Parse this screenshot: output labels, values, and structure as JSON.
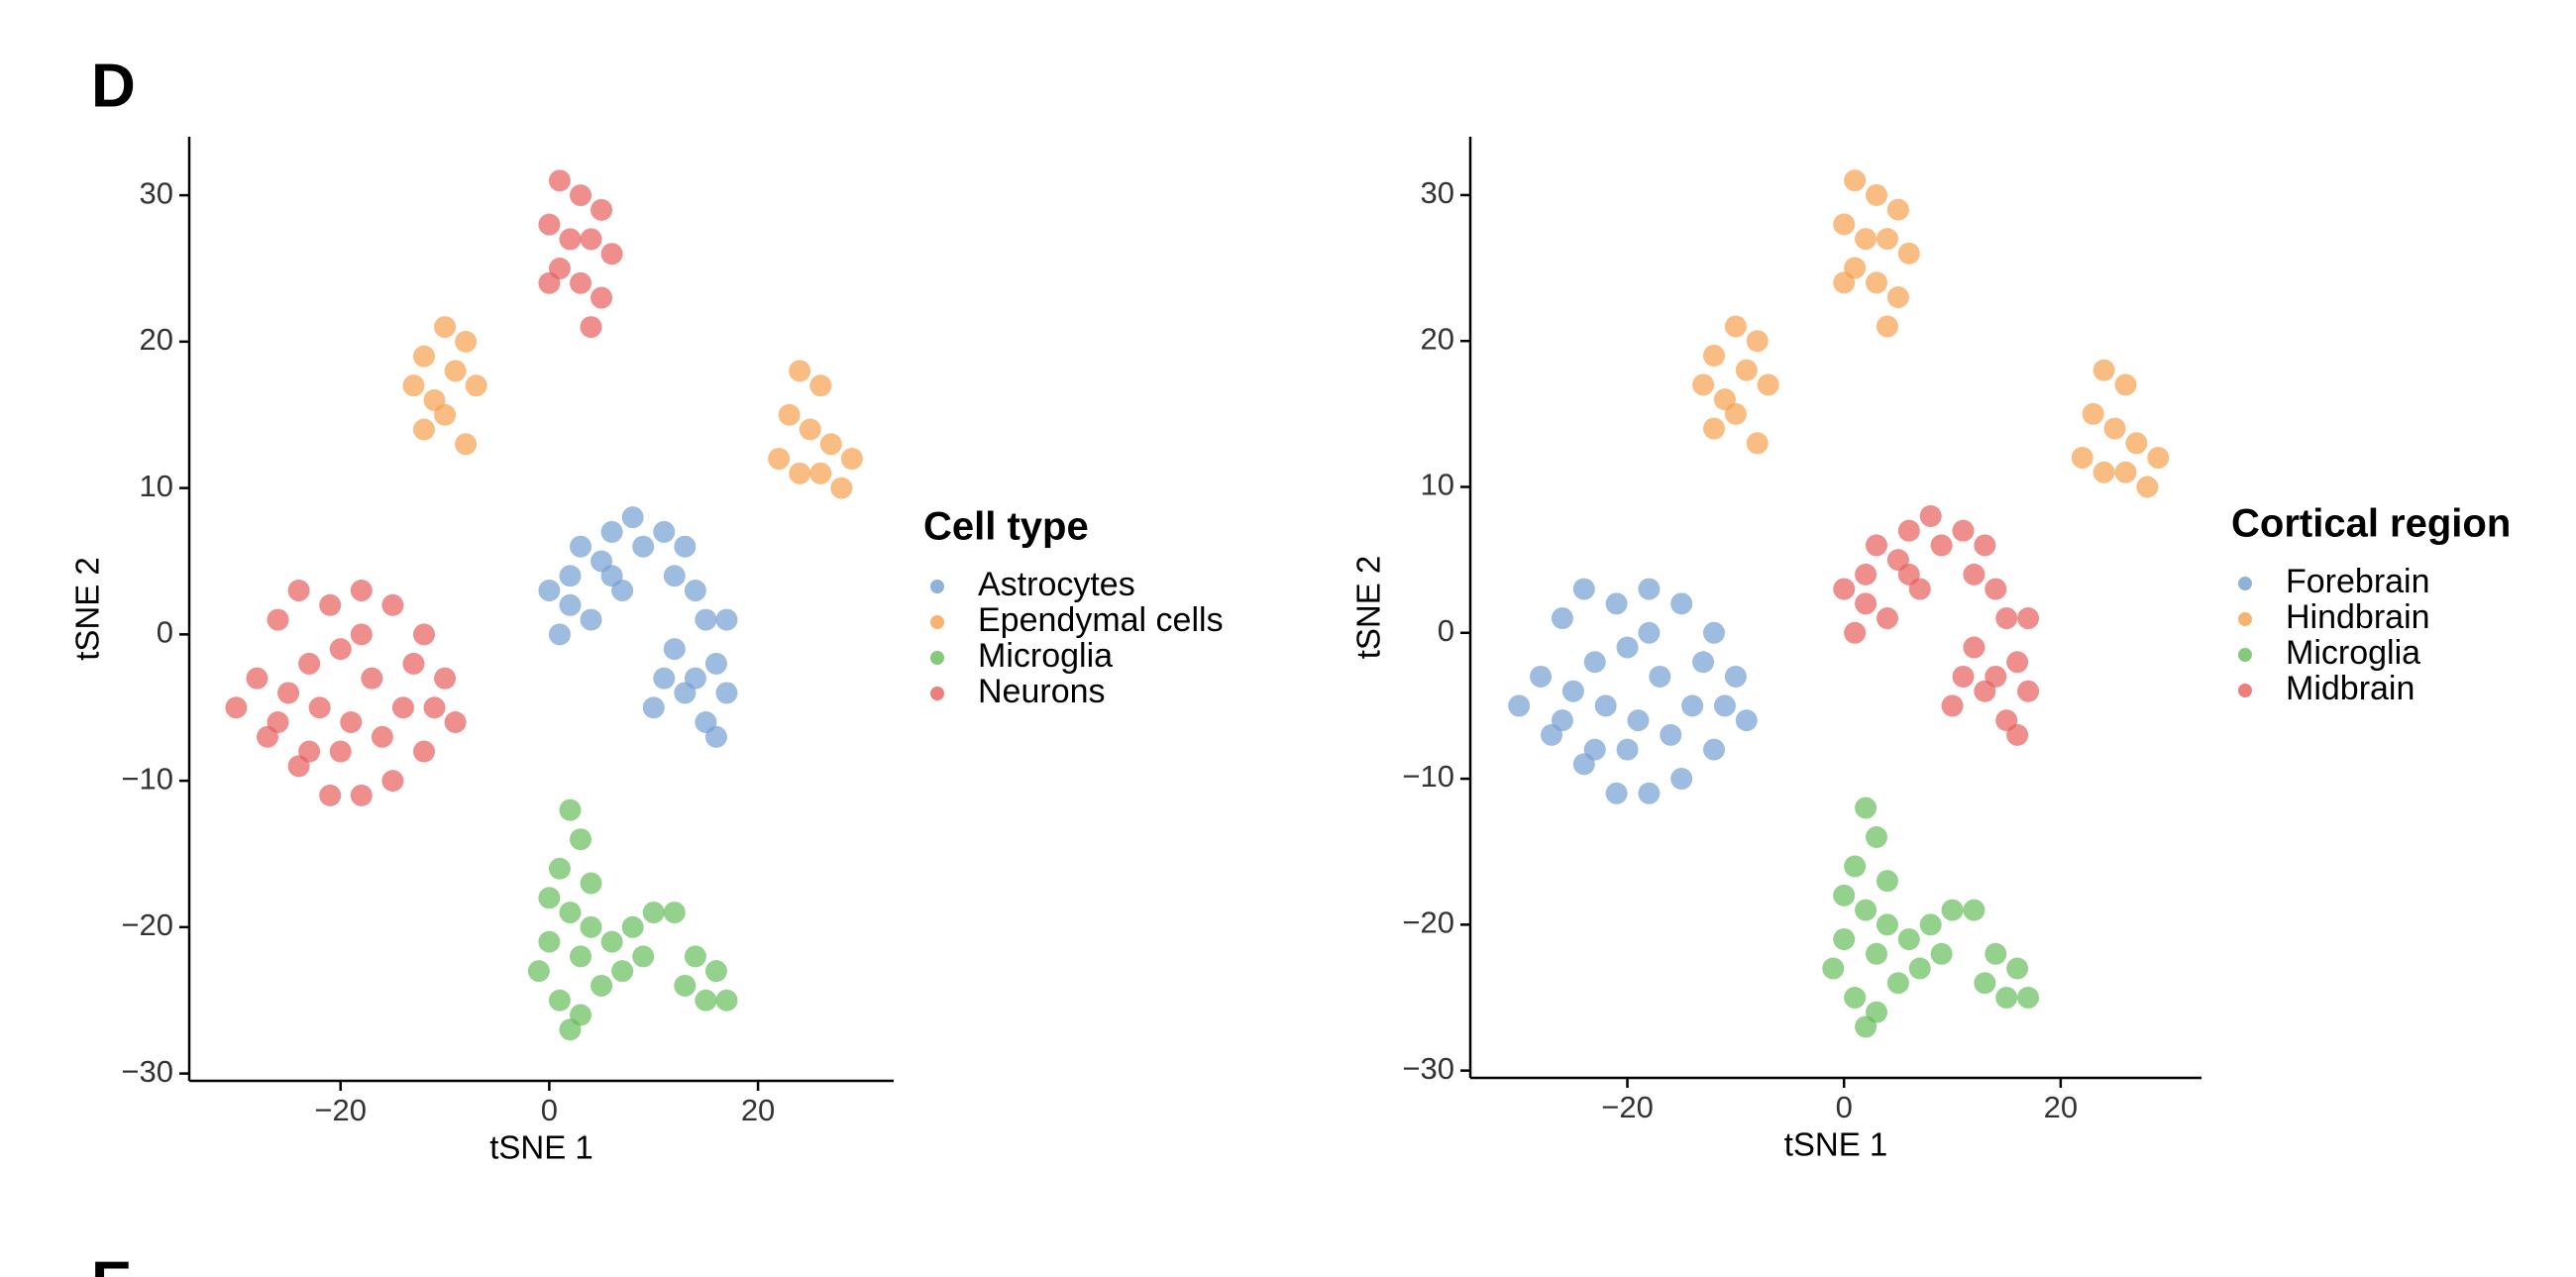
{
  "panels": [
    "D",
    "E"
  ],
  "chart_data": [
    {
      "type": "scatter",
      "legend_title": "Cell type",
      "xlabel": "tSNE 1",
      "ylabel": "tSNE 2",
      "legend": "right",
      "grid": false,
      "xlim": [
        -34.5,
        33
      ],
      "ylim": [
        -30.5,
        34
      ],
      "xticks": [
        {
          "value": -20,
          "label": "−20"
        },
        0,
        20
      ],
      "yticks": [
        {
          "value": -30,
          "label": "−30"
        },
        {
          "value": -20,
          "label": "−20"
        },
        {
          "value": -10,
          "label": "−10"
        },
        0,
        10,
        20,
        30
      ],
      "series": [
        {
          "name": "Astrocytes",
          "color": "#739fd1",
          "x": [
            0,
            1,
            2,
            3,
            4,
            5,
            6,
            7,
            8,
            9,
            11,
            12,
            13,
            14,
            15,
            16,
            17,
            15,
            16,
            13,
            11,
            12,
            10,
            14,
            2,
            6,
            17
          ],
          "y": [
            3,
            0,
            4,
            6,
            1,
            5,
            7,
            3,
            8,
            6,
            7,
            4,
            6,
            3,
            1,
            -2,
            -4,
            -6,
            -7,
            -4,
            -3,
            -1,
            -5,
            -3,
            2,
            4,
            1
          ]
        },
        {
          "name": "Ependymal cells",
          "color": "#f6a04d",
          "x": [
            -10,
            -8,
            -12,
            -9,
            -13,
            -11,
            -7,
            -10,
            -12,
            -8,
            24,
            26,
            23,
            25,
            22,
            27,
            29,
            24,
            28,
            26
          ],
          "y": [
            21,
            20,
            19,
            18,
            17,
            16,
            17,
            15,
            14,
            13,
            18,
            17,
            15,
            14,
            12,
            13,
            12,
            11,
            10,
            11
          ]
        },
        {
          "name": "Microglia",
          "color": "#66bd5b",
          "x": [
            2,
            3,
            1,
            4,
            2,
            0,
            3,
            -1,
            1,
            3,
            5,
            6,
            7,
            8,
            9,
            10,
            12,
            4,
            0,
            2,
            14,
            16,
            17,
            15,
            13
          ],
          "y": [
            -12,
            -14,
            -16,
            -17,
            -19,
            -21,
            -22,
            -23,
            -25,
            -26,
            -24,
            -21,
            -23,
            -20,
            -22,
            -19,
            -19,
            -20,
            -18,
            -27,
            -22,
            -23,
            -25,
            -25,
            -24
          ]
        },
        {
          "name": "Neurons",
          "color": "#e75f5c",
          "x": [
            1,
            3,
            5,
            0,
            2,
            4,
            6,
            1,
            3,
            5,
            0,
            4,
            -28,
            -26,
            -24,
            -21,
            -18,
            -15,
            -12,
            -10,
            -9,
            -12,
            -15,
            -18,
            -21,
            -24,
            -27,
            -30,
            -23,
            -20,
            -17,
            -14,
            -19,
            -22,
            -25,
            -16,
            -20,
            -13,
            -26,
            -18,
            -11,
            -23
          ],
          "y": [
            31,
            30,
            29,
            28,
            27,
            27,
            26,
            25,
            24,
            23,
            24,
            21,
            -3,
            1,
            3,
            2,
            3,
            2,
            0,
            -3,
            -6,
            -8,
            -10,
            -11,
            -11,
            -9,
            -7,
            -5,
            -2,
            -1,
            -3,
            -5,
            -6,
            -5,
            -4,
            -7,
            -8,
            -2,
            -6,
            0,
            -5,
            -8
          ]
        }
      ]
    },
    {
      "type": "scatter",
      "legend_title": "Cortical region",
      "xlabel": "tSNE 1",
      "ylabel": "tSNE 2",
      "legend": "right",
      "grid": false,
      "xlim": [
        -34.5,
        33
      ],
      "ylim": [
        -30.5,
        34
      ],
      "xticks": [
        {
          "value": -20,
          "label": "−20"
        },
        0,
        20
      ],
      "yticks": [
        {
          "value": -30,
          "label": "−30"
        },
        {
          "value": -20,
          "label": "−20"
        },
        {
          "value": -10,
          "label": "−10"
        },
        0,
        10,
        20,
        30
      ],
      "series": [
        {
          "name": "Forebrain",
          "color": "#739fd1",
          "x": [
            -28,
            -26,
            -24,
            -21,
            -18,
            -15,
            -12,
            -10,
            -9,
            -12,
            -15,
            -18,
            -21,
            -24,
            -27,
            -30,
            -23,
            -20,
            -17,
            -14,
            -19,
            -22,
            -25,
            -16,
            -20,
            -13,
            -26,
            -18,
            -11,
            -23
          ],
          "y": [
            -3,
            1,
            3,
            2,
            3,
            2,
            0,
            -3,
            -6,
            -8,
            -10,
            -11,
            -11,
            -9,
            -7,
            -5,
            -2,
            -1,
            -3,
            -5,
            -6,
            -5,
            -4,
            -7,
            -8,
            -2,
            -6,
            0,
            -5,
            -8
          ]
        },
        {
          "name": "Hindbrain",
          "color": "#f6a04d",
          "x": [
            1,
            3,
            5,
            0,
            2,
            4,
            6,
            1,
            3,
            5,
            0,
            4,
            -10,
            -8,
            -12,
            -9,
            -13,
            -11,
            -7,
            -10,
            -12,
            -8,
            24,
            26,
            23,
            25,
            22,
            27,
            29,
            24,
            28,
            26
          ],
          "y": [
            31,
            30,
            29,
            28,
            27,
            27,
            26,
            25,
            24,
            23,
            24,
            21,
            21,
            20,
            19,
            18,
            17,
            16,
            17,
            15,
            14,
            13,
            18,
            17,
            15,
            14,
            12,
            13,
            12,
            11,
            10,
            11
          ]
        },
        {
          "name": "Microglia",
          "color": "#66bd5b",
          "x": [
            2,
            3,
            1,
            4,
            2,
            0,
            3,
            -1,
            1,
            3,
            5,
            6,
            7,
            8,
            9,
            10,
            12,
            4,
            0,
            2,
            14,
            16,
            17,
            15,
            13
          ],
          "y": [
            -12,
            -14,
            -16,
            -17,
            -19,
            -21,
            -22,
            -23,
            -25,
            -26,
            -24,
            -21,
            -23,
            -20,
            -22,
            -19,
            -19,
            -20,
            -18,
            -27,
            -22,
            -23,
            -25,
            -25,
            -24
          ]
        },
        {
          "name": "Midbrain",
          "color": "#e75f5c",
          "x": [
            0,
            1,
            2,
            3,
            4,
            5,
            6,
            7,
            8,
            9,
            11,
            12,
            13,
            14,
            15,
            16,
            17,
            15,
            16,
            13,
            11,
            12,
            10,
            14,
            2,
            6,
            17
          ],
          "y": [
            3,
            0,
            4,
            6,
            1,
            5,
            7,
            3,
            8,
            6,
            7,
            4,
            6,
            3,
            1,
            -2,
            -4,
            -6,
            -7,
            -4,
            -3,
            -1,
            -5,
            -3,
            2,
            4,
            1
          ]
        }
      ]
    }
  ]
}
